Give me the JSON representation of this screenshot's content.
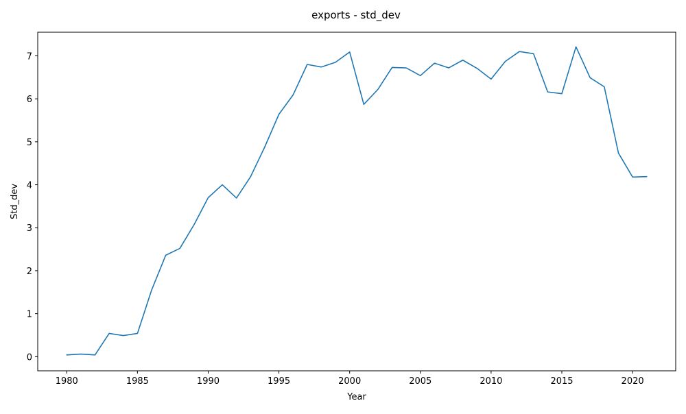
{
  "chart_data": {
    "type": "line",
    "title": "exports - std_dev",
    "xlabel": "Year",
    "ylabel": "Std_dev",
    "xlim": [
      1977.95,
      2023.05
    ],
    "ylim": [
      -0.33,
      7.55
    ],
    "xticks": [
      1980,
      1985,
      1990,
      1995,
      2000,
      2005,
      2010,
      2015,
      2020
    ],
    "yticks": [
      0,
      1,
      2,
      3,
      4,
      5,
      6,
      7
    ],
    "grid": false,
    "legend": "none",
    "line_color": "#1f77b4",
    "series": [
      {
        "x": [
          1980,
          1981,
          1982,
          1983,
          1984,
          1985,
          1986,
          1987,
          1988,
          1989,
          1990,
          1991,
          1992,
          1993,
          1994,
          1995,
          1996,
          1997,
          1998,
          1999,
          2000,
          2001,
          2002,
          2003,
          2004,
          2005,
          2006,
          2007,
          2008,
          2009,
          2010,
          2011,
          2012,
          2013,
          2014,
          2015,
          2016,
          2017,
          2018,
          2019,
          2020,
          2021
        ],
        "values": [
          0.04,
          0.06,
          0.04,
          0.54,
          0.49,
          0.54,
          1.55,
          2.36,
          2.52,
          3.07,
          3.7,
          4.0,
          3.69,
          4.19,
          4.88,
          5.64,
          6.09,
          6.8,
          6.74,
          6.85,
          7.09,
          5.87,
          6.22,
          6.73,
          6.72,
          6.54,
          6.83,
          6.72,
          6.9,
          6.71,
          6.46,
          6.87,
          7.1,
          7.05,
          6.16,
          6.12,
          7.21,
          6.49,
          6.28,
          4.74,
          4.18,
          4.19
        ]
      }
    ]
  }
}
